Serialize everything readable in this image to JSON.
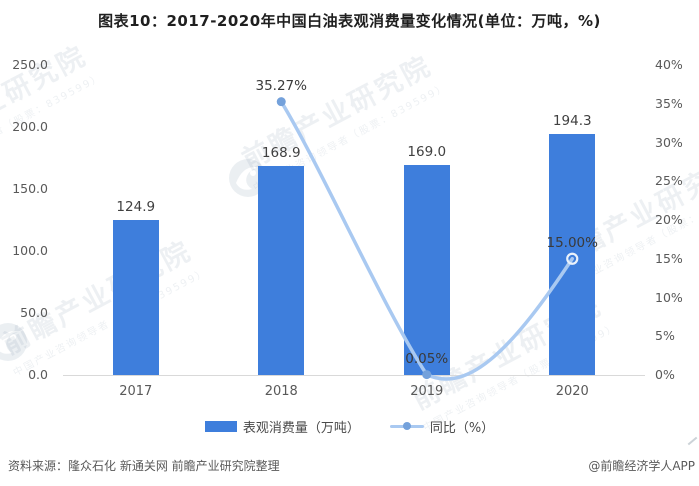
{
  "page": {
    "title": "图表10：2017-2020年中国白油表观消费量变化情况(单位：万吨，%)"
  },
  "chart_data": {
    "type": "bar",
    "combo": "bar+line",
    "categories": [
      "2017",
      "2018",
      "2019",
      "2020"
    ],
    "series": [
      {
        "name": "表观消费量（万吨）",
        "type": "bar",
        "axis": "left",
        "values": [
          124.9,
          168.9,
          169.0,
          194.3
        ],
        "labels": [
          "124.9",
          "168.9",
          "169.0",
          "194.3"
        ],
        "color": "#3E7EDC"
      },
      {
        "name": "同比（%）",
        "type": "line",
        "axis": "right",
        "values": [
          null,
          35.27,
          0.05,
          15.0
        ],
        "labels": [
          "35.27%",
          "0.05%",
          "15.00%"
        ],
        "color": "#A9C9F1",
        "marker_color": "#74A1DB",
        "end_marker": "open-circle",
        "smooth": true
      }
    ],
    "left_axis": {
      "min": 0,
      "max": 250,
      "step": 50,
      "tick_labels": [
        "0.0",
        "50.0",
        "100.0",
        "150.0",
        "200.0",
        "250.0"
      ]
    },
    "right_axis": {
      "min": 0,
      "max": 40,
      "step": 5,
      "tick_labels": [
        "0%",
        "5%",
        "10%",
        "15%",
        "20%",
        "25%",
        "30%",
        "35%",
        "40%"
      ]
    },
    "grid": false,
    "legend_position": "bottom",
    "title": "图表10：2017-2020年中国白油表观消费量变化情况(单位：万吨，%)"
  },
  "legend": {
    "items": [
      {
        "label": "表观消费量（万吨）",
        "swatch": "bar"
      },
      {
        "label": "同比（%）",
        "swatch": "line"
      }
    ]
  },
  "footer": {
    "source": "资料来源：隆众石化 新通关网 前瞻产业研究院整理",
    "credit": "@前瞻经济学人APP"
  },
  "watermark": {
    "brand": "前瞻产业研究院",
    "sub": "中国产业咨询领导者（股票：839599）",
    "logo": "qianzhan-logo"
  },
  "colors": {
    "bar": "#3E7EDC",
    "line": "#A9C9F1",
    "marker": "#74A1DB",
    "axis_text": "#595959",
    "label_text": "#404040",
    "axis_line": "#d9d9d9"
  }
}
